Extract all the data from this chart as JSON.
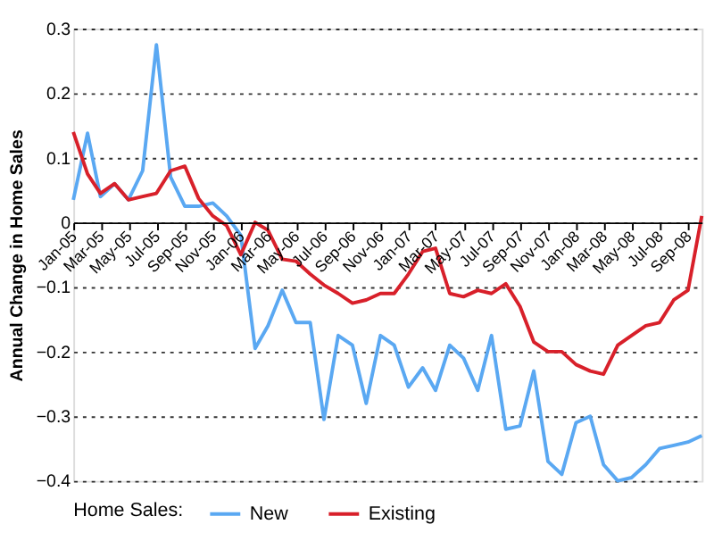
{
  "chart_data": {
    "type": "line",
    "ylabel": "Annual Change in Home Sales",
    "legend_title": "Home Sales:",
    "x": [
      "2005-01",
      "2005-02",
      "2005-03",
      "2005-04",
      "2005-05",
      "2005-06",
      "2005-07",
      "2005-08",
      "2005-09",
      "2005-10",
      "2005-11",
      "2005-12",
      "2006-01",
      "2006-02",
      "2006-03",
      "2006-04",
      "2006-05",
      "2006-06",
      "2006-07",
      "2006-08",
      "2006-09",
      "2006-10",
      "2006-11",
      "2006-12",
      "2007-01",
      "2007-02",
      "2007-03",
      "2007-04",
      "2007-05",
      "2007-06",
      "2007-07",
      "2007-08",
      "2007-09",
      "2007-10",
      "2007-11",
      "2007-12",
      "2008-01",
      "2008-02",
      "2008-03",
      "2008-04",
      "2008-05",
      "2008-06",
      "2008-07",
      "2008-08",
      "2008-09",
      "2008-10"
    ],
    "series": [
      {
        "name": "New",
        "color": "#5aa8f2",
        "values": [
          0.035,
          0.138,
          0.04,
          0.06,
          0.035,
          0.08,
          0.275,
          0.07,
          0.025,
          0.025,
          0.03,
          0.01,
          -0.02,
          -0.195,
          -0.16,
          -0.105,
          -0.155,
          -0.155,
          -0.305,
          -0.175,
          -0.19,
          -0.28,
          -0.175,
          -0.19,
          -0.255,
          -0.225,
          -0.26,
          -0.19,
          -0.21,
          -0.26,
          -0.175,
          -0.32,
          -0.315,
          -0.23,
          -0.37,
          -0.39,
          -0.31,
          -0.3,
          -0.375,
          -0.4,
          -0.395,
          -0.375,
          -0.35,
          -0.345,
          -0.34,
          -0.33
        ]
      },
      {
        "name": "Existing",
        "color": "#d8202a",
        "values": [
          0.14,
          0.075,
          0.045,
          0.06,
          0.035,
          0.04,
          0.045,
          0.08,
          0.087,
          0.037,
          0.01,
          -0.005,
          -0.05,
          0,
          -0.012,
          -0.057,
          -0.06,
          -0.08,
          -0.097,
          -0.11,
          -0.125,
          -0.12,
          -0.11,
          -0.11,
          -0.08,
          -0.045,
          -0.04,
          -0.11,
          -0.115,
          -0.105,
          -0.11,
          -0.095,
          -0.13,
          -0.185,
          -0.2,
          -0.2,
          -0.22,
          -0.23,
          -0.235,
          -0.19,
          -0.175,
          -0.16,
          -0.155,
          -0.12,
          -0.105,
          0.01
        ]
      }
    ],
    "xlim": [
      "2005-01",
      "2008-10"
    ],
    "xticks": [
      {
        "value": "2005-01",
        "label": "Jan-05"
      },
      {
        "value": "2005-03",
        "label": "Mar-05"
      },
      {
        "value": "2005-05",
        "label": "May-05"
      },
      {
        "value": "2005-07",
        "label": "Jul-05"
      },
      {
        "value": "2005-09",
        "label": "Sep-05"
      },
      {
        "value": "2005-11",
        "label": "Nov-05"
      },
      {
        "value": "2006-01",
        "label": "Jan-06"
      },
      {
        "value": "2006-03",
        "label": "Mar-06"
      },
      {
        "value": "2006-05",
        "label": "May-06"
      },
      {
        "value": "2006-07",
        "label": "Jul-06"
      },
      {
        "value": "2006-09",
        "label": "Sep-06"
      },
      {
        "value": "2006-11",
        "label": "Nov-06"
      },
      {
        "value": "2007-01",
        "label": "Jan-07"
      },
      {
        "value": "2007-03",
        "label": "Mar-07"
      },
      {
        "value": "2007-05",
        "label": "May-07"
      },
      {
        "value": "2007-07",
        "label": "Jul-07"
      },
      {
        "value": "2007-09",
        "label": "Sep-07"
      },
      {
        "value": "2007-11",
        "label": "Nov-07"
      },
      {
        "value": "2008-01",
        "label": "Jan-08"
      },
      {
        "value": "2008-03",
        "label": "Mar-08"
      },
      {
        "value": "2008-05",
        "label": "May-08"
      },
      {
        "value": "2008-07",
        "label": "Jul-08"
      },
      {
        "value": "2008-09",
        "label": "Sep-08"
      }
    ],
    "ylim": [
      -0.4,
      0.3
    ],
    "yticks": [
      -0.4,
      -0.3,
      -0.2,
      -0.1,
      0,
      0.1,
      0.2,
      0.3
    ],
    "grid": "y",
    "legend": "bottom",
    "marker": "none",
    "line_style": "solid"
  }
}
